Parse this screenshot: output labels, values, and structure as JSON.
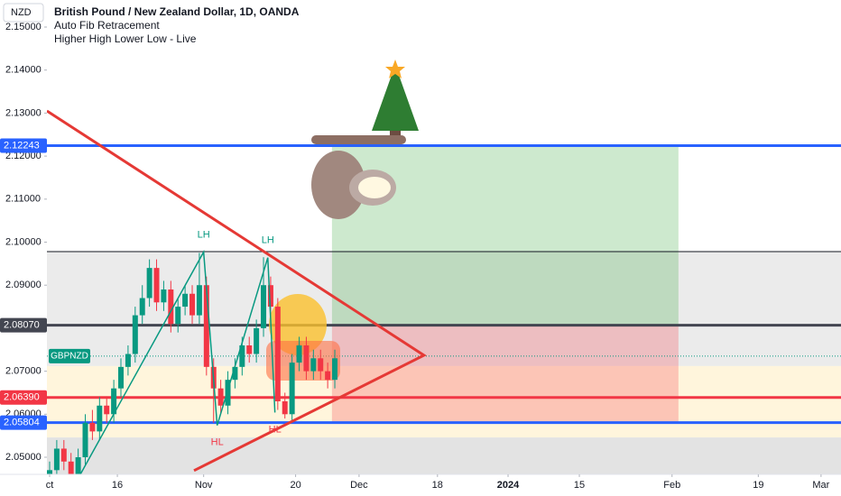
{
  "chart_data": {
    "type": "candlestick",
    "title": "British Pound / New Zealand Dollar, 1D, OANDA",
    "currency": "NZD",
    "indicators": [
      "Auto Fib Retracement",
      "Higher High Lower Low - Live"
    ],
    "x": [
      0,
      1,
      2,
      3,
      4,
      5,
      6,
      7,
      8,
      9,
      10,
      11,
      12,
      13,
      14,
      15,
      16,
      17,
      18,
      19,
      20,
      21,
      22,
      23,
      24,
      25,
      26,
      27,
      28,
      29,
      30,
      31,
      32,
      33,
      34,
      35,
      36,
      37,
      38,
      39,
      40
    ],
    "open": [
      2.043,
      2.047,
      2.052,
      2.049,
      2.045,
      2.05,
      2.058,
      2.056,
      2.062,
      2.06,
      2.066,
      2.071,
      2.074,
      2.083,
      2.087,
      2.094,
      2.086,
      2.089,
      2.081,
      2.085,
      2.088,
      2.083,
      2.09,
      2.071,
      2.066,
      2.062,
      2.068,
      2.071,
      2.076,
      2.074,
      2.08,
      2.09,
      2.085,
      2.063,
      2.06,
      2.072,
      2.076,
      2.07,
      2.073,
      2.07,
      2.068
    ],
    "high": [
      2.049,
      2.054,
      2.054,
      2.051,
      2.052,
      2.06,
      2.061,
      2.064,
      2.064,
      2.068,
      2.073,
      2.076,
      2.085,
      2.09,
      2.096,
      2.096,
      2.091,
      2.091,
      2.087,
      2.09,
      2.09,
      2.0975,
      2.092,
      2.073,
      2.068,
      2.07,
      2.073,
      2.078,
      2.078,
      2.082,
      2.0965,
      2.092,
      2.087,
      2.065,
      2.074,
      2.078,
      2.078,
      2.075,
      2.075,
      2.072,
      2.075
    ],
    "low": [
      2.041,
      2.045,
      2.047,
      2.043,
      2.043,
      2.048,
      2.054,
      2.054,
      2.058,
      2.058,
      2.064,
      2.069,
      2.072,
      2.081,
      2.085,
      2.084,
      2.084,
      2.079,
      2.079,
      2.083,
      2.081,
      2.081,
      2.069,
      2.058,
      2.06,
      2.06,
      2.066,
      2.069,
      2.072,
      2.072,
      2.078,
      2.083,
      2.061,
      2.059,
      2.058,
      2.07,
      2.068,
      2.068,
      2.068,
      2.066,
      2.066
    ],
    "close": [
      2.047,
      2.052,
      2.049,
      2.045,
      2.05,
      2.058,
      2.056,
      2.062,
      2.06,
      2.066,
      2.071,
      2.074,
      2.083,
      2.087,
      2.094,
      2.086,
      2.089,
      2.081,
      2.085,
      2.088,
      2.083,
      2.09,
      2.071,
      2.066,
      2.062,
      2.068,
      2.071,
      2.076,
      2.074,
      2.08,
      2.09,
      2.085,
      2.063,
      2.06,
      2.072,
      2.076,
      2.07,
      2.073,
      2.07,
      2.068,
      2.073
    ],
    "up_color": "#089981",
    "down_color": "#f23645",
    "xlim": [
      -0.38,
      111
    ],
    "xticks": [
      {
        "value": 0,
        "label": "ct"
      },
      {
        "value": 9.5,
        "label": "16"
      },
      {
        "value": 21.6,
        "label": "Nov"
      },
      {
        "value": 34.5,
        "label": "20"
      },
      {
        "value": 43.4,
        "label": "Dec"
      },
      {
        "value": 54.4,
        "label": "18"
      },
      {
        "value": 64.3,
        "label": "2024",
        "emphasis": true
      },
      {
        "value": 74.3,
        "label": "15"
      },
      {
        "value": 87.3,
        "label": "Feb"
      },
      {
        "value": 99.4,
        "label": "19"
      },
      {
        "value": 108.2,
        "label": "Mar"
      }
    ],
    "ylim": [
      2.04602,
      2.15629
    ],
    "yticks": [
      {
        "value": 2.15,
        "label": "2.15000"
      },
      {
        "value": 2.14,
        "label": "2.14000"
      },
      {
        "value": 2.13,
        "label": "2.13000"
      },
      {
        "value": 2.12,
        "label": "2.12000"
      },
      {
        "value": 2.11,
        "label": "2.11000"
      },
      {
        "value": 2.1,
        "label": "2.10000"
      },
      {
        "value": 2.09,
        "label": "2.09000"
      },
      {
        "value": 2.08,
        "label": "2.08000"
      },
      {
        "value": 2.07,
        "label": "2.07000"
      },
      {
        "value": 2.06,
        "label": "2.06000"
      },
      {
        "value": 2.05,
        "label": "2.05000"
      }
    ],
    "grid": false,
    "zones": [
      {
        "from": 2.0978,
        "to": 2.0712,
        "color": "#ebebeb"
      },
      {
        "from": 2.0712,
        "to": 2.0546,
        "color": "#fff5dc"
      },
      {
        "from": 2.0546,
        "to": 2.04602,
        "color": "#e3e3e3"
      }
    ],
    "boxes": [
      {
        "x": [
          39.6,
          88.2
        ],
        "y": [
          2.12243,
          2.0807
        ],
        "color": "rgba(76,175,80,0.28)"
      },
      {
        "x": [
          39.6,
          88.2
        ],
        "y": [
          2.0807,
          2.05804
        ],
        "color": "rgba(242,54,69,0.25)"
      }
    ],
    "price_lines": [
      {
        "value": 2.12243,
        "label": "2.12243",
        "color": "#2962ff"
      },
      {
        "value": 2.0807,
        "label": "2.08070",
        "color": "#434651"
      },
      {
        "value": 2.0639,
        "label": "2.06390",
        "color": "#f23645"
      },
      {
        "value": 2.05804,
        "label": "2.05804",
        "color": "#2962ff"
      }
    ],
    "reference_line": {
      "value": 2.0978,
      "color": "#131722"
    },
    "symbol_tag": {
      "label": "GBPNZD",
      "value": 2.0735,
      "color": "#089981"
    },
    "trendline": {
      "x": [
        -0.38,
        52.5,
        20.25
      ],
      "y": [
        2.1305,
        2.0737,
        2.0469
      ],
      "color": "#e53935"
    },
    "zigzag": {
      "x": [
        4.3,
        21.6,
        23.5,
        30.6,
        31.6
      ],
      "y": [
        2.046,
        2.0977,
        2.0574,
        2.0964,
        2.0604
      ],
      "color": "#089981"
    },
    "pivot_labels": [
      {
        "label": "LH",
        "x": 21.6,
        "y": 2.0977,
        "position": "above",
        "color": "#089981"
      },
      {
        "label": "HL",
        "x": 23.5,
        "y": 2.0574,
        "position": "below",
        "color": "#f23645"
      },
      {
        "label": "LH",
        "x": 30.6,
        "y": 2.0964,
        "position": "above",
        "color": "#089981"
      },
      {
        "label": "HL",
        "x": 31.6,
        "y": 2.0604,
        "position": "below",
        "color": "#f23645"
      }
    ]
  }
}
